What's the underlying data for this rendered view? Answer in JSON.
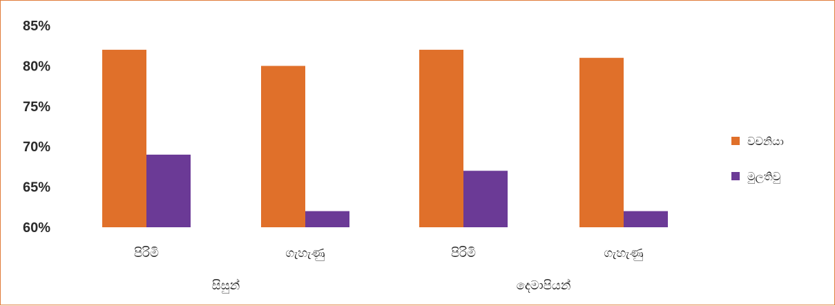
{
  "chart_data": {
    "type": "bar",
    "title": "",
    "xlabel": "",
    "ylabel": "",
    "ylim": [
      60,
      85
    ],
    "yticks": [
      "60%",
      "65%",
      "70%",
      "75%",
      "80%",
      "85%"
    ],
    "ytick_values": [
      60,
      65,
      70,
      75,
      80,
      85
    ],
    "categories": [
      "පිරිමි",
      "ගැහැණු",
      "පිරිමි",
      "ගැහැණු"
    ],
    "groups": [
      {
        "label": "සිසුන්",
        "categories": [
          0,
          1
        ]
      },
      {
        "label": "දෙමාපියන්",
        "categories": [
          2,
          3
        ]
      }
    ],
    "series": [
      {
        "name": "වචනියා",
        "color": "#e0702a",
        "values": [
          82,
          80,
          82,
          81
        ]
      },
      {
        "name": "මුලතිවු",
        "color": "#6b3a96",
        "values": [
          69,
          62,
          67,
          62
        ]
      }
    ],
    "legend": "right",
    "grid": false
  }
}
